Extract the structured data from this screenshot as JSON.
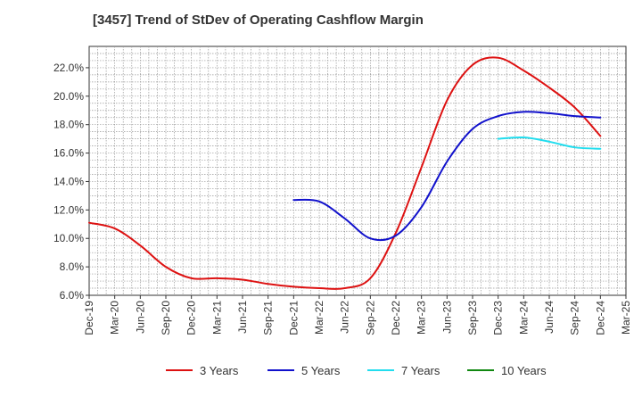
{
  "chart_data": {
    "type": "line",
    "title": "[3457]  Trend of StDev of Operating Cashflow Margin",
    "xlabel": "",
    "ylabel": "",
    "x_ticks": [
      "Dec-19",
      "Mar-20",
      "Jun-20",
      "Sep-20",
      "Dec-20",
      "Mar-21",
      "Jun-21",
      "Sep-21",
      "Dec-21",
      "Mar-22",
      "Jun-22",
      "Sep-22",
      "Dec-22",
      "Mar-23",
      "Jun-23",
      "Sep-23",
      "Dec-23",
      "Mar-24",
      "Jun-24",
      "Sep-24",
      "Dec-24",
      "Mar-25"
    ],
    "y_ticks": [
      "6.0%",
      "8.0%",
      "10.0%",
      "12.0%",
      "14.0%",
      "16.0%",
      "18.0%",
      "20.0%",
      "22.0%"
    ],
    "ylim": [
      6.0,
      23.5
    ],
    "grid": true,
    "legend_position": "bottom",
    "series": [
      {
        "name": "3 Years",
        "color": "#dd1111",
        "points": [
          [
            "Dec-19",
            11.1
          ],
          [
            "Mar-20",
            10.7
          ],
          [
            "Jun-20",
            9.5
          ],
          [
            "Sep-20",
            8.0
          ],
          [
            "Dec-20",
            7.2
          ],
          [
            "Mar-21",
            7.2
          ],
          [
            "Jun-21",
            7.1
          ],
          [
            "Sep-21",
            6.8
          ],
          [
            "Dec-21",
            6.6
          ],
          [
            "Mar-22",
            6.5
          ],
          [
            "Jun-22",
            6.5
          ],
          [
            "Sep-22",
            7.2
          ],
          [
            "Dec-22",
            10.4
          ],
          [
            "Mar-23",
            15.0
          ],
          [
            "Jun-23",
            19.7
          ],
          [
            "Sep-23",
            22.2
          ],
          [
            "Dec-23",
            22.7
          ],
          [
            "Mar-24",
            21.8
          ],
          [
            "Jun-24",
            20.6
          ],
          [
            "Sep-24",
            19.2
          ],
          [
            "Dec-24",
            17.2
          ]
        ]
      },
      {
        "name": "5 Years",
        "color": "#1111cc",
        "points": [
          [
            "Dec-21",
            12.7
          ],
          [
            "Mar-22",
            12.6
          ],
          [
            "Jun-22",
            11.4
          ],
          [
            "Sep-22",
            10.0
          ],
          [
            "Dec-22",
            10.2
          ],
          [
            "Mar-23",
            12.2
          ],
          [
            "Jun-23",
            15.4
          ],
          [
            "Sep-23",
            17.7
          ],
          [
            "Dec-23",
            18.6
          ],
          [
            "Mar-24",
            18.9
          ],
          [
            "Jun-24",
            18.8
          ],
          [
            "Sep-24",
            18.6
          ],
          [
            "Dec-24",
            18.5
          ]
        ]
      },
      {
        "name": "7 Years",
        "color": "#22ddee",
        "points": [
          [
            "Dec-23",
            17.0
          ],
          [
            "Mar-24",
            17.1
          ],
          [
            "Jun-24",
            16.8
          ],
          [
            "Sep-24",
            16.4
          ],
          [
            "Dec-24",
            16.3
          ]
        ]
      },
      {
        "name": "10 Years",
        "color": "#118811",
        "points": []
      }
    ]
  }
}
